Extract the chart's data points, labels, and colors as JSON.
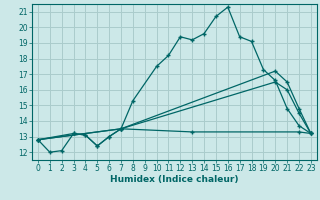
{
  "xlabel": "Humidex (Indice chaleur)",
  "xlim": [
    -0.5,
    23.5
  ],
  "ylim": [
    11.5,
    21.5
  ],
  "xticks": [
    0,
    1,
    2,
    3,
    4,
    5,
    6,
    7,
    8,
    9,
    10,
    11,
    12,
    13,
    14,
    15,
    16,
    17,
    18,
    19,
    20,
    21,
    22,
    23
  ],
  "yticks": [
    12,
    13,
    14,
    15,
    16,
    17,
    18,
    19,
    20,
    21
  ],
  "background_color": "#cce8e8",
  "grid_color": "#aacccc",
  "line_color": "#006666",
  "line1_x": [
    0,
    1,
    2,
    3,
    4,
    5,
    6,
    7,
    8,
    10,
    11,
    12,
    13,
    14,
    15,
    16,
    17,
    18,
    19,
    20,
    21,
    22,
    23
  ],
  "line1_y": [
    12.8,
    12.0,
    12.1,
    13.2,
    13.1,
    12.4,
    13.0,
    13.5,
    15.3,
    17.5,
    18.2,
    19.4,
    19.2,
    19.6,
    20.7,
    21.3,
    19.4,
    19.1,
    17.3,
    16.6,
    14.8,
    13.7,
    13.2
  ],
  "line2_x": [
    0,
    3,
    4,
    5,
    6,
    7,
    13,
    22,
    23
  ],
  "line2_y": [
    12.8,
    13.2,
    13.1,
    12.4,
    13.0,
    13.5,
    13.3,
    13.3,
    13.2
  ],
  "line3_x": [
    0,
    7,
    20,
    21,
    22,
    23
  ],
  "line3_y": [
    12.8,
    13.5,
    17.2,
    16.5,
    14.8,
    13.2
  ],
  "line4_x": [
    0,
    7,
    20,
    21,
    22,
    23
  ],
  "line4_y": [
    12.8,
    13.5,
    16.5,
    16.0,
    14.5,
    13.2
  ],
  "fontsize_tick": 5.5,
  "fontsize_label": 6.5
}
